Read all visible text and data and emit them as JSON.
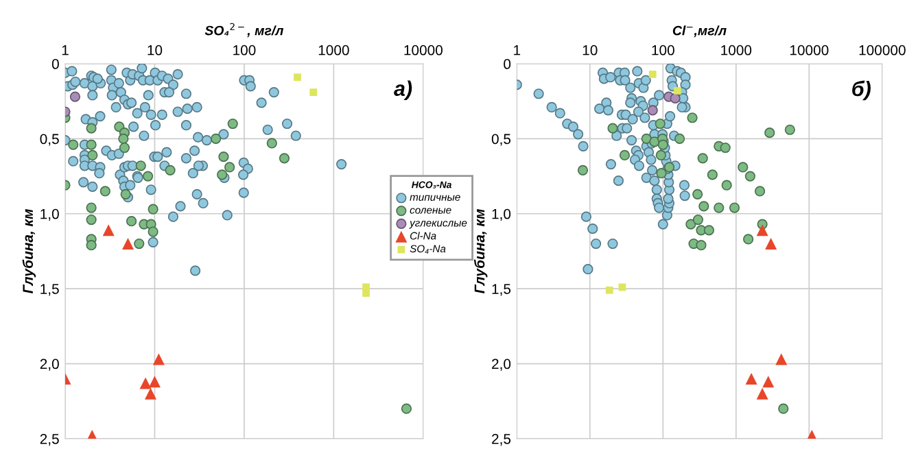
{
  "chart_data": [
    {
      "type": "scatter",
      "xlabel": "SO₄$^{2−}$, мг/л",
      "ylabel": "Глубина, км",
      "log": "x",
      "grid": true,
      "legend": "right",
      "legend_title": "HCO₃-Na",
      "xlim": [
        1,
        10000
      ],
      "xticks": [
        1,
        10,
        100,
        1000,
        10000
      ],
      "ylim": [
        2.5,
        0
      ],
      "yticks": [
        0,
        {
          "value": 0.5,
          "label": "0,5"
        },
        {
          "value": 1.0,
          "label": "1,0"
        },
        {
          "value": 1.5,
          "label": "1,5"
        },
        {
          "value": 2.0,
          "label": "2,0"
        },
        {
          "value": 2.5,
          "label": "2,5"
        }
      ],
      "annotations": [
        "а)"
      ],
      "series": [
        {
          "name": "типичные",
          "color": "#8fc8de",
          "marker": "circle",
          "x": [
            1,
            1.19,
            1.07,
            1.21,
            1.3,
            1.65,
            1.96,
            2.08,
            2.02,
            2.49,
            2.3,
            3.28,
            3.28,
            3.43,
            3.98,
            4.88,
            5.33,
            5.66,
            6.7,
            7.2,
            7.4,
            8.8,
            10.1,
            10.8,
            12.1,
            14.1,
            16.1,
            18.1,
            12.9,
            14.5,
            3.33,
            4.2,
            4.6,
            5.03,
            5.5,
            8.5,
            2.02,
            22.5,
            3.7,
            6.4,
            7.8,
            9.1,
            12.1,
            18.1,
            23.2,
            1.7,
            2.46,
            2.02,
            5.8,
            10.2,
            22.5,
            1,
            1.65,
            1.65,
            1.65,
            1.65,
            1.23,
            2.02,
            2.46,
            2.41,
            2.88,
            3.33,
            3.98,
            7.6,
            9.9,
            10.8,
            13.6,
            22.5,
            4.1,
            4.6,
            5.03,
            5.66,
            6.4,
            4.47,
            4.6,
            5.33,
            6.5,
            12.9,
            26.8,
            1.6,
            2.02,
            9.1,
            19.4,
            16.1,
            9.6,
            5.03,
            29.7,
            30.5,
            27.9,
            34.4,
            30.9,
            29.7,
            34.8,
            38.2,
            58.9,
            60,
            64.7,
            100,
            114.5,
            118,
            215,
            156,
            302,
            183,
            378,
            98.8,
            110,
            97.7,
            98.8,
            1220,
            28.4
          ],
          "values": [
            0.06,
            0.05,
            0.15,
            0.14,
            0.12,
            0.13,
            0.08,
            0.09,
            0.15,
            0.13,
            0.1,
            0.04,
            0.11,
            0.16,
            0.13,
            0.06,
            0.11,
            0.07,
            0.08,
            0.03,
            0.11,
            0.11,
            0.06,
            0.11,
            0.08,
            0.1,
            0.14,
            0.07,
            0.19,
            0.19,
            0.21,
            0.19,
            0.24,
            0.27,
            0.26,
            0.21,
            0.21,
            0.2,
            0.29,
            0.33,
            0.29,
            0.34,
            0.34,
            0.32,
            0.3,
            0.37,
            0.35,
            0.39,
            0.42,
            0.41,
            0.41,
            0.51,
            0.54,
            0.61,
            0.64,
            0.68,
            0.65,
            0.68,
            0.69,
            0.73,
            0.58,
            0.61,
            0.6,
            0.48,
            0.62,
            0.62,
            0.59,
            0.63,
            0.74,
            0.69,
            0.68,
            0.68,
            0.75,
            0.78,
            0.82,
            0.81,
            0.76,
            0.68,
            0.73,
            0.79,
            0.82,
            0.84,
            0.95,
            1.02,
            1.19,
            0.89,
            0.29,
            0.49,
            0.58,
            0.68,
            0.68,
            0.87,
            0.93,
            0.51,
            0.47,
            0.76,
            1.01,
            0.11,
            0.11,
            0.15,
            0.19,
            0.26,
            0.4,
            0.44,
            0.48,
            0.66,
            0.7,
            0.74,
            0.86,
            0.67,
            1.38
          ]
        },
        {
          "name": "соленые",
          "color": "#7dba84",
          "marker": "circle",
          "x": [
            1,
            1.96,
            4.02,
            4.6,
            4.47,
            4.6,
            1.23,
            1.96,
            2.02,
            7.0,
            8.4,
            14.9,
            1,
            2.8,
            4.74,
            1.96,
            9.6,
            1.96,
            5.5,
            7.6,
            9.1,
            9.6,
            1.96,
            1.96,
            6.7,
            74.5,
            48.3,
            58.9,
            68.7,
            56.6,
            204,
            281,
            6500
          ],
          "values": [
            0.36,
            0.43,
            0.42,
            0.46,
            0.5,
            0.56,
            0.54,
            0.54,
            0.61,
            0.68,
            0.75,
            0.71,
            0.81,
            0.85,
            0.87,
            0.96,
            0.97,
            1.04,
            1.05,
            1.07,
            1.07,
            1.12,
            1.17,
            1.21,
            1.2,
            0.4,
            0.5,
            0.62,
            0.69,
            0.74,
            0.53,
            0.63,
            2.3
          ]
        },
        {
          "name": "углекислые",
          "color": "#a98db8",
          "marker": "circle",
          "x": [
            1.29,
            1
          ],
          "values": [
            0.22,
            0.32
          ]
        },
        {
          "name": "Cl-Na",
          "color": "#e8462a",
          "marker": "triangle",
          "x": [
            3.05,
            5.03,
            1,
            2,
            7.9,
            10,
            9,
            11.1
          ],
          "values": [
            1.11,
            1.2,
            2.1,
            2.48,
            2.13,
            2.12,
            2.2,
            1.97
          ]
        },
        {
          "name": "SO₄-Na",
          "color": "#dde65c",
          "marker": "square",
          "x": [
            393,
            593,
            2300,
            2300
          ],
          "values": [
            0.09,
            0.19,
            1.49,
            1.53
          ]
        }
      ]
    },
    {
      "type": "scatter",
      "xlabel": "Cl$^{−}$,мг/л",
      "ylabel": "Глубина, км",
      "log": "x",
      "grid": true,
      "xlim": [
        1,
        100000
      ],
      "xticks": [
        1,
        10,
        100,
        1000,
        10000,
        100000
      ],
      "ylim": [
        2.5,
        0
      ],
      "yticks": [
        0,
        {
          "value": 0.5,
          "label": "0,5"
        },
        {
          "value": 1.0,
          "label": "1,0"
        },
        {
          "value": 1.5,
          "label": "1,5"
        },
        {
          "value": 2.0,
          "label": "2,0"
        },
        {
          "value": 2.5,
          "label": "2,5"
        }
      ],
      "annotations": [
        "б)"
      ],
      "series": [
        {
          "color": "#8fc8de",
          "marker": "circle",
          "x": [
            1,
            1.99,
            3.0,
            3.9,
            4.9,
            5.9,
            6.9,
            8.1,
            8.9,
            10.9,
            12.1,
            20.5,
            19.4,
            24.6,
            15,
            15.6,
            19.1,
            24.9,
            25.9,
            29.9,
            30.3,
            35.8,
            44.5,
            46.8,
            54.1,
            58.2,
            37.2,
            35.8,
            16.8,
            13.5,
            17.8,
            27.4,
            31,
            38.5,
            49.6,
            53.3,
            46.1,
            56.5,
            27.8,
            32.1,
            23.2,
            37.2,
            43,
            46.1,
            41.4,
            47.1,
            59.4,
            73.8,
            88.5,
            59.4,
            63.9,
            68.7,
            71.2,
            76.5,
            82.3,
            82.3,
            85.3,
            88.5,
            73.8,
            76.5,
            70.2,
            100,
            114,
            118,
            122,
            118,
            122,
            120,
            118,
            116,
            111,
            108,
            106,
            102,
            98.6,
            114,
            125,
            142,
            147,
            127,
            156,
            176,
            203,
            203,
            182,
            189,
            203,
            182,
            132,
            136,
            196,
            199,
            9.4
          ],
          "values": [
            0.14,
            0.2,
            0.29,
            0.33,
            0.4,
            0.42,
            0.47,
            0.55,
            1.02,
            1.1,
            1.2,
            1.2,
            0.67,
            0.78,
            0.06,
            0.1,
            0.09,
            0.06,
            0.11,
            0.06,
            0.11,
            0.16,
            0.05,
            0.13,
            0.16,
            0.11,
            0.23,
            0.26,
            0.26,
            0.3,
            0.31,
            0.34,
            0.34,
            0.37,
            0.25,
            0.28,
            0.32,
            0.36,
            0.43,
            0.43,
            0.48,
            0.51,
            0.58,
            0.61,
            0.64,
            0.68,
            0.76,
            0.26,
            0.21,
            0.55,
            0.59,
            0.64,
            0.71,
            0.78,
            0.84,
            0.9,
            0.93,
            0.96,
            0.41,
            0.47,
            0.53,
            1.07,
            1.01,
            0.96,
            0.93,
            0.9,
            0.84,
            0.79,
            0.74,
            0.7,
            0.65,
            0.61,
            0.56,
            0.52,
            0.47,
            0.4,
            0.35,
            0.48,
            0.68,
            0.03,
            0.05,
            0.06,
            0.09,
            0.14,
            0.19,
            0.23,
            0.29,
            0.29,
            0.11,
            0.15,
            0.81,
            0.88,
            1.37
          ]
        },
        {
          "color": "#7dba84",
          "marker": "circle",
          "x": [
            8,
            20.5,
            29.9,
            59.4,
            76.5,
            91.6,
            98.6,
            100,
            93.7,
            122,
            95.1,
            169,
            252,
            2880,
            5460,
            582,
            714,
            350,
            1240,
            1560,
            475,
            745,
            2120,
            297,
            362,
            582,
            952,
            240,
            302,
            333,
            427,
            263,
            333,
            1470,
            2290,
            4440
          ],
          "values": [
            0.71,
            0.43,
            0.61,
            0.5,
            0.52,
            0.4,
            0.5,
            0.54,
            0.61,
            0.69,
            0.73,
            0.5,
            0.36,
            0.46,
            0.44,
            0.55,
            0.56,
            0.63,
            0.69,
            0.75,
            0.74,
            0.81,
            0.85,
            0.87,
            0.95,
            0.96,
            0.96,
            1.07,
            1.04,
            1.11,
            1.11,
            1.2,
            1.21,
            1.17,
            1.07,
            2.3
          ]
        },
        {
          "color": "#a98db8",
          "marker": "circle",
          "x": [
            72.2,
            120,
            147
          ],
          "values": [
            0.31,
            0.22,
            0.23
          ]
        },
        {
          "color": "#e8462a",
          "marker": "triangle",
          "x": [
            2290,
            3000,
            4160,
            1620,
            2760,
            2290,
            10900
          ],
          "values": [
            1.11,
            1.2,
            1.97,
            2.1,
            2.12,
            2.2,
            2.48
          ]
        },
        {
          "color": "#dde65c",
          "marker": "square",
          "x": [
            72.2,
            158,
            18.5,
            27.7
          ],
          "values": [
            0.07,
            0.18,
            1.51,
            1.49
          ]
        }
      ]
    }
  ]
}
